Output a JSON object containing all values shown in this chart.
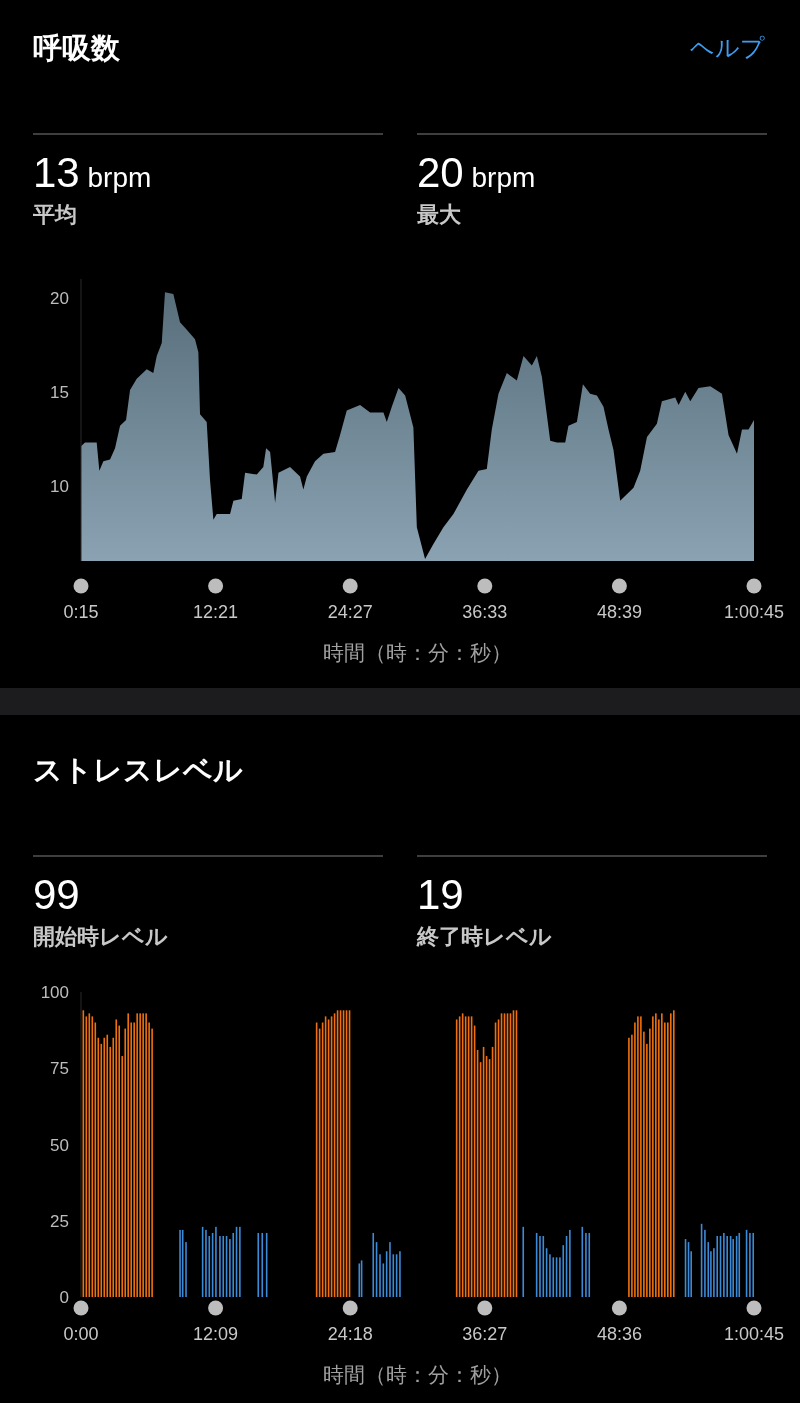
{
  "chart_data": [
    {
      "type": "area",
      "title": "呼吸数",
      "subtitle": "ヘルプ",
      "annotations": [
        "13 brpm",
        "平均",
        "20 brpm",
        "最大"
      ],
      "xlabel": "時間（時：分：秒）",
      "color": "#7592a4",
      "xlim": [
        0.25,
        60.75
      ],
      "xticks": [
        {
          "value": 0.25,
          "label": "0:15"
        },
        {
          "value": 12.35,
          "label": "12:21"
        },
        {
          "value": 24.45,
          "label": "24:27"
        },
        {
          "value": 36.55,
          "label": "36:33"
        },
        {
          "value": 48.65,
          "label": "48:39"
        },
        {
          "value": 60.75,
          "label": "1:00:45"
        }
      ],
      "ylim": [
        6,
        21
      ],
      "yticks": [
        10,
        15,
        20
      ],
      "x": [
        0.25,
        0.61,
        1.66,
        1.9,
        2.26,
        2.86,
        3.31,
        3.76,
        4.3,
        4.66,
        5.26,
        6.16,
        6.75,
        7.06,
        7.51,
        7.8,
        8.55,
        9.15,
        9.76,
        10.5,
        10.8,
        10.95,
        11.55,
        11.85,
        12.15,
        12.45,
        13.65,
        13.95,
        14.7,
        15.0,
        16.05,
        16.64,
        16.89,
        17.25,
        17.7,
        18.0,
        19.04,
        19.94,
        20.24,
        20.55,
        21.29,
        22.04,
        23.09,
        23.54,
        24.14,
        25.34,
        26.24,
        27.44,
        27.74,
        28.19,
        28.79,
        29.39,
        30.13,
        30.44,
        31.18,
        31.93,
        32.83,
        33.73,
        34.94,
        35.98,
        36.73,
        37.18,
        37.78,
        38.53,
        39.43,
        40.03,
        40.78,
        41.23,
        41.68,
        42.43,
        43.03,
        43.78,
        44.07,
        44.83,
        45.37,
        46.02,
        46.63,
        47.22,
        47.67,
        48.12,
        48.72,
        49.92,
        50.52,
        51.13,
        52.02,
        52.47,
        53.67,
        53.97,
        54.57,
        55.02,
        55.76,
        56.82,
        57.87,
        58.46,
        59.22,
        59.67,
        60.26,
        60.75
      ],
      "values": [
        12.1,
        12.3,
        12.3,
        10.8,
        11.3,
        11.4,
        12.0,
        13.2,
        13.5,
        15.1,
        15.7,
        16.2,
        16.0,
        16.9,
        17.6,
        20.3,
        20.2,
        18.7,
        18.3,
        17.8,
        17.1,
        13.8,
        13.4,
        10.3,
        8.2,
        8.5,
        8.5,
        9.2,
        9.3,
        10.7,
        10.6,
        11.0,
        12.0,
        11.8,
        9.1,
        10.7,
        11.0,
        10.5,
        9.8,
        10.5,
        11.3,
        11.7,
        11.8,
        12.7,
        14.0,
        14.3,
        13.9,
        13.9,
        13.4,
        14.2,
        15.2,
        14.8,
        13.1,
        7.8,
        6.1,
        6.9,
        7.8,
        8.5,
        9.8,
        10.8,
        10.9,
        13.0,
        14.9,
        16.0,
        15.6,
        16.9,
        16.4,
        16.9,
        15.8,
        12.4,
        12.3,
        12.3,
        13.2,
        13.4,
        15.4,
        14.9,
        14.8,
        14.2,
        13.0,
        11.9,
        9.2,
        9.9,
        10.8,
        12.6,
        13.3,
        14.5,
        14.7,
        14.3,
        15.0,
        14.5,
        15.2,
        15.3,
        14.9,
        12.7,
        11.7,
        13.0,
        13.0,
        13.5
      ]
    },
    {
      "type": "bar",
      "title": "ストレスレベル",
      "annotations": [
        "99",
        "開始時レベル",
        "19",
        "終了時レベル"
      ],
      "xlabel": "時間（時：分：秒）",
      "xlim": [
        0,
        60.75
      ],
      "xticks": [
        {
          "value": 0,
          "label": "0:00"
        },
        {
          "value": 12.15,
          "label": "12:09"
        },
        {
          "value": 24.3,
          "label": "24:18"
        },
        {
          "value": 36.45,
          "label": "36:27"
        },
        {
          "value": 48.6,
          "label": "48:36"
        },
        {
          "value": 60.75,
          "label": "1:00:45"
        }
      ],
      "ylim": [
        0,
        100
      ],
      "yticks": [
        0,
        25,
        50,
        75,
        100
      ],
      "series": [
        {
          "color": "#f0700f",
          "x": [
            0.21,
            0.48,
            0.75,
            1.02,
            1.29,
            1.56,
            1.83,
            2.1,
            2.37,
            2.64,
            2.91,
            3.18,
            3.45,
            3.72,
            3.99,
            4.26,
            4.53,
            4.8,
            5.07,
            5.34,
            5.61,
            5.88,
            6.15,
            6.42,
            21.27,
            21.54,
            21.81,
            22.08,
            22.35,
            22.62,
            22.89,
            23.16,
            23.43,
            23.7,
            23.97,
            24.24,
            33.91,
            34.18,
            34.45,
            34.72,
            34.99,
            35.26,
            35.53,
            35.8,
            36.07,
            36.34,
            36.61,
            36.88,
            37.15,
            37.42,
            37.69,
            37.96,
            38.23,
            38.5,
            38.77,
            39.04,
            39.31,
            49.46,
            49.73,
            50.0,
            50.27,
            50.54,
            50.81,
            51.08,
            51.35,
            51.62,
            51.89,
            52.16,
            52.43,
            52.7,
            52.97,
            53.24,
            53.51
          ],
          "values": [
            94,
            92,
            93,
            92,
            90,
            85,
            83,
            85,
            86,
            82,
            85,
            91,
            89,
            79,
            88,
            93,
            90,
            90,
            93,
            93,
            93,
            93,
            90,
            88,
            90,
            88,
            90,
            92,
            91,
            92,
            93,
            94,
            94,
            94,
            94,
            94,
            91,
            92,
            93,
            92,
            92,
            92,
            89,
            81,
            77,
            82,
            79,
            78,
            82,
            90,
            91,
            93,
            93,
            93,
            93,
            94,
            94,
            85,
            86,
            90,
            92,
            92,
            87,
            83,
            88,
            92,
            93,
            91,
            93,
            90,
            90,
            93,
            94
          ]
        },
        {
          "color": "#3d8ad6",
          "x": [
            8.94,
            9.18,
            9.48,
            10.98,
            11.28,
            11.58,
            11.88,
            12.18,
            12.54,
            12.84,
            13.14,
            13.44,
            13.74,
            14.04,
            14.34,
            16.0,
            16.36,
            16.76,
            25.12,
            25.33,
            26.38,
            26.68,
            26.99,
            27.29,
            27.59,
            27.89,
            28.19,
            28.49,
            28.79,
            39.92,
            41.13,
            41.43,
            41.73,
            42.03,
            42.33,
            42.63,
            42.93,
            43.23,
            43.53,
            43.83,
            44.13,
            45.25,
            45.58,
            45.88,
            54.57,
            54.84,
            55.08,
            56.02,
            56.32,
            56.62,
            56.86,
            57.13,
            57.43,
            57.73,
            58.03,
            58.33,
            58.64,
            58.87,
            59.18,
            59.42,
            60.08,
            60.38,
            60.68
          ],
          "values": [
            22,
            22,
            18,
            23,
            22,
            20,
            21,
            23,
            20,
            20,
            20,
            19,
            21,
            23,
            23,
            21,
            21,
            21,
            11,
            12,
            21,
            18,
            14,
            11,
            15,
            18,
            14,
            14,
            15,
            23,
            21,
            20,
            20,
            16,
            14,
            13,
            13,
            13,
            17,
            20,
            22,
            23,
            21,
            21,
            19,
            18,
            15,
            24,
            22,
            18,
            15,
            16,
            20,
            20,
            21,
            20,
            20,
            19,
            20,
            21,
            22,
            21,
            21
          ]
        }
      ]
    }
  ]
}
